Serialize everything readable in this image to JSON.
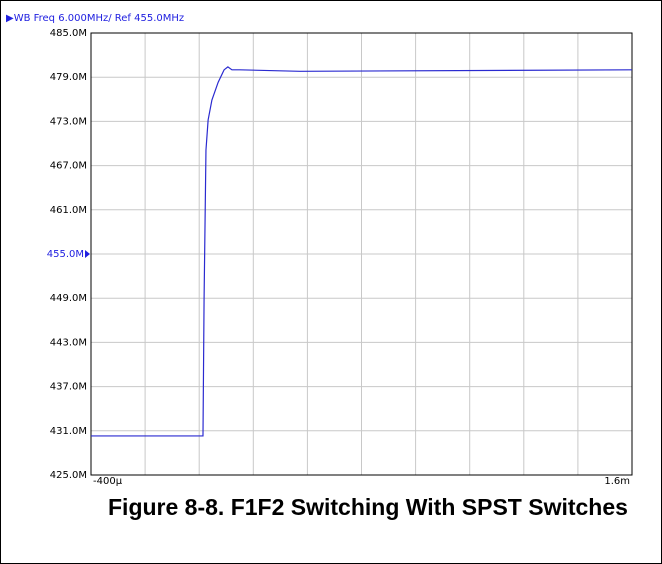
{
  "chart_data": {
    "type": "line",
    "header": "▶WB Freq 6.000MHz/ Ref 455.0MHz",
    "title": "Figure 8-8. F1F2 Switching With SPST Switches",
    "xlim": [
      -0.0004,
      0.0016
    ],
    "xticks": [
      {
        "value": -0.0004,
        "label": "-400µ"
      },
      {
        "value": 0.0016,
        "label": "1.6m"
      }
    ],
    "xgrid": [
      -0.0004,
      -0.0002,
      0,
      0.0002,
      0.0004,
      0.0006,
      0.0008,
      0.001,
      0.0012,
      0.0014,
      0.0016
    ],
    "ylim": [
      425,
      485
    ],
    "yticks": [
      {
        "value": 425,
        "label": "425.0M"
      },
      {
        "value": 431,
        "label": "431.0M"
      },
      {
        "value": 437,
        "label": "437.0M"
      },
      {
        "value": 443,
        "label": "443.0M"
      },
      {
        "value": 449,
        "label": "449.0M"
      },
      {
        "value": 455,
        "label": "455.0M"
      },
      {
        "value": 461,
        "label": "461.0M"
      },
      {
        "value": 467,
        "label": "467.0M"
      },
      {
        "value": 473,
        "label": "473.0M"
      },
      {
        "value": 479,
        "label": "479.0M"
      },
      {
        "value": 485,
        "label": "485.0M"
      }
    ],
    "reference": 455,
    "reference_color": "#2020e0",
    "grid": true,
    "series": [
      {
        "color": "#2a2ad0",
        "x": [
          -0.0004,
          1.4e-05,
          1.8e-05,
          2.5e-05,
          3.3e-05,
          4.7e-05,
          7e-05,
          9.2e-05,
          0.000106,
          0.000121,
          0.00015,
          0.000373,
          0.0016
        ],
        "values": [
          430.3,
          430.3,
          448.8,
          469.1,
          473.2,
          475.9,
          478.3,
          480.0,
          480.4,
          480.0,
          480.0,
          479.8,
          480.0
        ]
      }
    ]
  }
}
